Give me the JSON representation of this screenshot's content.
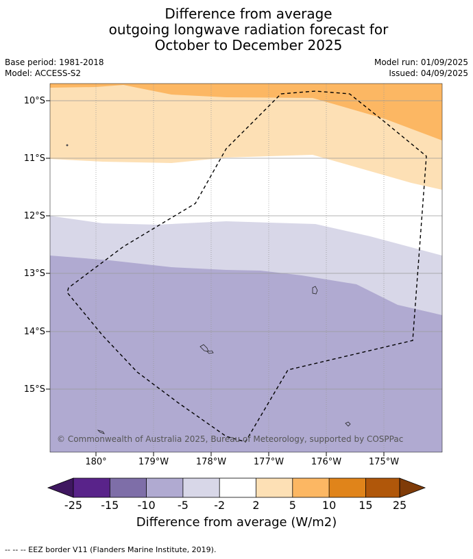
{
  "title": {
    "line1": "Difference from average",
    "line2": "outgoing longwave radiation forecast for",
    "line3": "October to December 2025"
  },
  "meta": {
    "base_period": "Base period: 1981-2018",
    "model": "Model: ACCESS-S2",
    "model_run": "Model run: 01/09/2025",
    "issued": "Issued: 04/09/2025"
  },
  "map": {
    "lat_labels": [
      "10°S",
      "11°S",
      "12°S",
      "13°S",
      "14°S",
      "15°S"
    ],
    "lon_labels": [
      "180°",
      "179°W",
      "178°W",
      "177°W",
      "176°W",
      "175°W"
    ],
    "credit": "© Commonwealth of Australia 2025, Bureau of Meteorology, supported by COSPPac"
  },
  "colorbar": {
    "title": "Difference from average (W/m2)",
    "tick_labels": [
      "-25",
      "-15",
      "-10",
      "-5",
      "-2",
      "2",
      "5",
      "10",
      "15",
      "25"
    ],
    "colors": [
      "#3f1760",
      "#59238a",
      "#7e6ea8",
      "#b0aad1",
      "#d8d7e8",
      "#ffffff",
      "#fde0b5",
      "#fcb763",
      "#e0841a",
      "#b0570a",
      "#7f3b08"
    ]
  },
  "legend_note": "--  --  -- EEZ border V11 (Flanders Marine Institute, 2019)."
}
